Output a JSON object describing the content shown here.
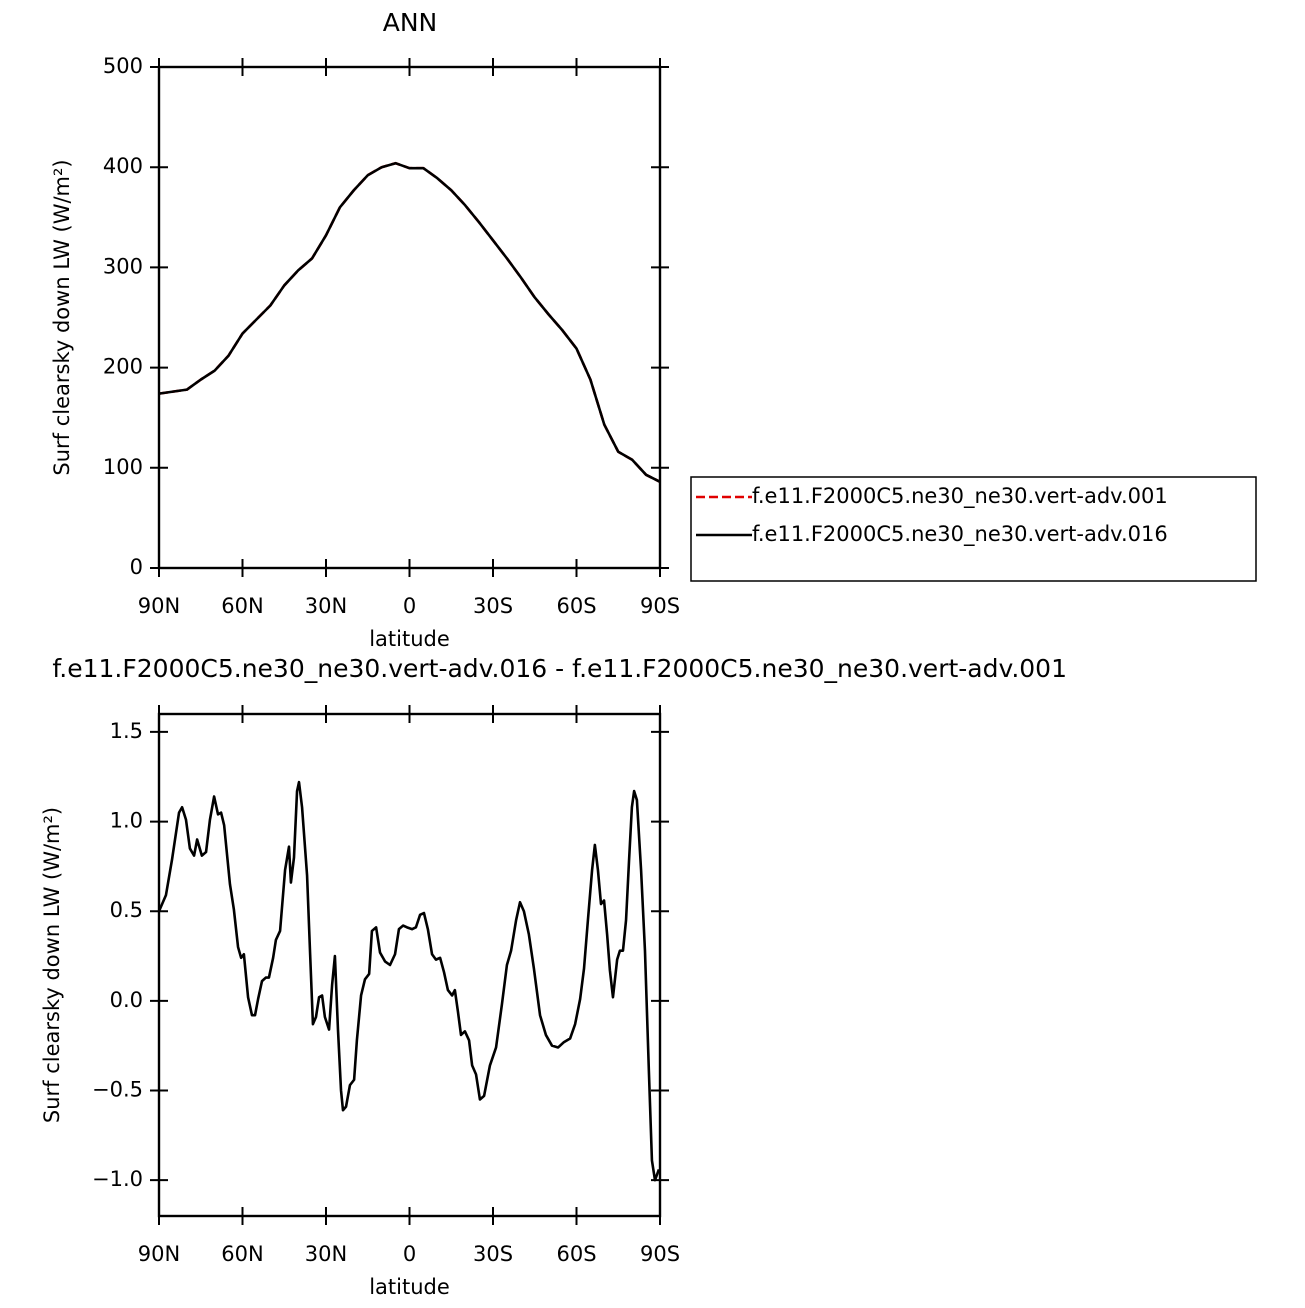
{
  "chart_data": [
    {
      "type": "line",
      "title": "ANN",
      "xlabel": "latitude",
      "ylabel": "Surf clearsky down LW (W/m²)",
      "x": [
        90,
        85,
        80,
        75,
        70,
        65,
        60,
        55,
        50,
        45,
        40,
        35,
        30,
        25,
        20,
        15,
        10,
        5,
        0,
        -5,
        -10,
        -15,
        -20,
        -25,
        -30,
        -35,
        -40,
        -45,
        -50,
        -55,
        -60,
        -65,
        -70,
        -75,
        -80,
        -85,
        -90
      ],
      "series": [
        {
          "name": "f.e11.F2000C5.ne30_ne30.vert-adv.001",
          "color": "#e00000",
          "dashed": true,
          "values": [
            174,
            176,
            178,
            188,
            197,
            212,
            234,
            248,
            262,
            282,
            297,
            309,
            332,
            360,
            377,
            392,
            400,
            404,
            399,
            399,
            389,
            377,
            362,
            345,
            327,
            309,
            290,
            270,
            253,
            237,
            219,
            188,
            143,
            116,
            108,
            93,
            86
          ]
        },
        {
          "name": "f.e11.F2000C5.ne30_ne30.vert-adv.016",
          "color": "#000000",
          "dashed": false,
          "values": [
            174,
            176,
            178,
            188,
            197,
            212,
            234,
            248,
            262,
            282,
            297,
            309,
            332,
            360,
            377,
            392,
            400,
            404,
            399,
            399,
            389,
            377,
            362,
            345,
            327,
            309,
            290,
            270,
            253,
            237,
            219,
            188,
            143,
            116,
            108,
            93,
            86
          ]
        }
      ],
      "xlim": [
        90,
        -90
      ],
      "xticks": [
        {
          "value": 90,
          "label": "90N"
        },
        {
          "value": 60,
          "label": "60N"
        },
        {
          "value": 30,
          "label": "30N"
        },
        0,
        {
          "value": -30,
          "label": "30S"
        },
        {
          "value": -60,
          "label": "60S"
        },
        {
          "value": -90,
          "label": "90S"
        }
      ],
      "ylim": [
        0,
        500
      ],
      "yticks": [
        0,
        100,
        200,
        300,
        400,
        500
      ],
      "legend": "right"
    },
    {
      "type": "line",
      "title": "f.e11.F2000C5.ne30_ne30.vert-adv.016 - f.e11.F2000C5.ne30_ne30.vert-adv.001",
      "xlabel": "latitude",
      "ylabel": "Surf clearsky down LW (W/m²)",
      "x": [
        90,
        87.5,
        85.3,
        82.8,
        81.7,
        80.3,
        78.9,
        77.4,
        76.3,
        74.6,
        73.1,
        71.7,
        70.2,
        68.8,
        67.7,
        66.6,
        64.5,
        63.1,
        61.6,
        60.5,
        59.5,
        58.0,
        56.6,
        55.5,
        54.4,
        53.0,
        51.6,
        50.5,
        49.0,
        48.0,
        46.5,
        44.7,
        43.3,
        42.6,
        41.5,
        40.4,
        39.7,
        38.6,
        36.8,
        35.7,
        34.7,
        33.6,
        32.5,
        31.4,
        30.4,
        28.9,
        27.8,
        26.8,
        25.7,
        24.6,
        23.9,
        22.8,
        21.4,
        19.9,
        18.9,
        17.4,
        16.0,
        14.5,
        13.5,
        12.0,
        10.6,
        8.8,
        7.0,
        5.2,
        3.8,
        2.3,
        0.9,
        -0.9,
        -2.3,
        -3.8,
        -5.2,
        -6.6,
        -8.1,
        -9.5,
        -11.0,
        -12.4,
        -13.8,
        -15.3,
        -16.3,
        -17.4,
        -18.5,
        -19.9,
        -21.4,
        -22.5,
        -23.9,
        -25.3,
        -26.8,
        -28.9,
        -31.1,
        -33.2,
        -35.0,
        -36.5,
        -38.3,
        -39.7,
        -41.1,
        -42.9,
        -44.7,
        -46.9,
        -49.0,
        -51.2,
        -53.4,
        -55.5,
        -57.7,
        -59.5,
        -61.3,
        -62.7,
        -64.1,
        -65.6,
        -66.6,
        -67.7,
        -68.8,
        -69.9,
        -71.0,
        -72.0,
        -73.1,
        -74.6,
        -75.6,
        -76.7,
        -77.8,
        -78.9,
        -79.9,
        -80.7,
        -81.7,
        -83.2,
        -84.6,
        -86.0,
        -87.1,
        -88.2,
        -89.6
      ],
      "series": [
        {
          "color": "#000000",
          "dashed": false,
          "values": [
            0.5,
            0.59,
            0.79,
            1.05,
            1.08,
            1.01,
            0.85,
            0.81,
            0.9,
            0.81,
            0.83,
            1.01,
            1.14,
            1.04,
            1.05,
            0.98,
            0.65,
            0.51,
            0.3,
            0.24,
            0.26,
            0.02,
            -0.08,
            -0.08,
            0.01,
            0.11,
            0.13,
            0.13,
            0.24,
            0.34,
            0.39,
            0.73,
            0.86,
            0.66,
            0.8,
            1.17,
            1.22,
            1.08,
            0.7,
            0.26,
            -0.13,
            -0.09,
            0.02,
            0.03,
            -0.09,
            -0.16,
            0.09,
            0.25,
            -0.16,
            -0.5,
            -0.61,
            -0.59,
            -0.47,
            -0.44,
            -0.22,
            0.03,
            0.12,
            0.15,
            0.39,
            0.41,
            0.27,
            0.22,
            0.2,
            0.26,
            0.4,
            0.42,
            0.41,
            0.4,
            0.41,
            0.48,
            0.49,
            0.4,
            0.26,
            0.23,
            0.24,
            0.16,
            0.06,
            0.03,
            0.06,
            -0.06,
            -0.19,
            -0.17,
            -0.22,
            -0.36,
            -0.41,
            -0.55,
            -0.53,
            -0.36,
            -0.26,
            -0.02,
            0.2,
            0.28,
            0.45,
            0.55,
            0.5,
            0.37,
            0.18,
            -0.08,
            -0.19,
            -0.25,
            -0.26,
            -0.23,
            -0.21,
            -0.13,
            0.01,
            0.18,
            0.45,
            0.73,
            0.87,
            0.73,
            0.54,
            0.56,
            0.37,
            0.17,
            0.02,
            0.23,
            0.28,
            0.28,
            0.45,
            0.79,
            1.08,
            1.17,
            1.12,
            0.73,
            0.28,
            -0.39,
            -0.89,
            -1.0,
            -0.94
          ]
        }
      ],
      "xlim": [
        90,
        -90
      ],
      "xticks": [
        {
          "value": 90,
          "label": "90N"
        },
        {
          "value": 60,
          "label": "60N"
        },
        {
          "value": 30,
          "label": "30N"
        },
        0,
        {
          "value": -30,
          "label": "30S"
        },
        {
          "value": -60,
          "label": "60S"
        },
        {
          "value": -90,
          "label": "90S"
        }
      ],
      "ylim": [
        -1.2,
        1.6
      ],
      "yticks": [
        {
          "value": -1.0,
          "label": "−1.0"
        },
        {
          "value": -0.5,
          "label": "−0.5"
        },
        {
          "value": 0,
          "label": "0.0"
        },
        0.5,
        {
          "value": 1.0,
          "label": "1.0"
        },
        1.5
      ]
    }
  ]
}
